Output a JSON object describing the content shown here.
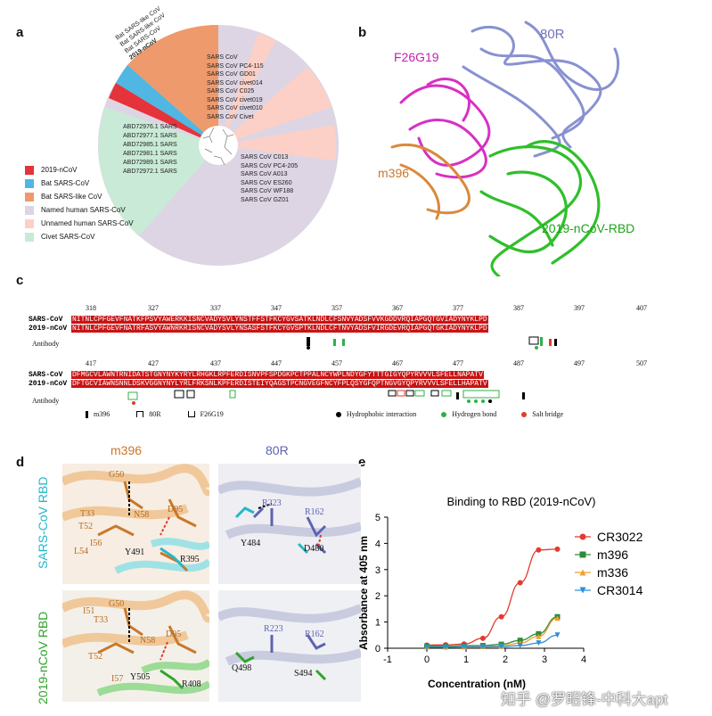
{
  "panels": {
    "a": "a",
    "b": "b",
    "c": "c",
    "d": "d",
    "e": "e"
  },
  "panel_a": {
    "legend": [
      {
        "label": "2019-nCoV",
        "color": "#e5333a"
      },
      {
        "label": "Bat SARS-CoV",
        "color": "#4fb7e2"
      },
      {
        "label": "Bat SARS-like CoV",
        "color": "#ee9a6c"
      },
      {
        "label": "Named human SARS-CoV",
        "color": "#ddd5e3"
      },
      {
        "label": "Unnamed human SARS-CoV",
        "color": "#fcd0c7"
      },
      {
        "label": "Civet SARS-CoV",
        "color": "#c9ead6"
      }
    ],
    "tree_labels": [
      "Bat SARS-like CoV",
      "Bat SARS-like CoV",
      "Bat SARS-CoV",
      "2019-nCoV",
      "SARS CoV",
      "SARS CoV PC4-115",
      "SARS CoV GD01",
      "SARS CoV civet014",
      "SARS CoV C025",
      "SARS CoV civet019",
      "SARS CoV civet010",
      "SARS CoV Civet",
      "SARS CoV C013",
      "SARS CoV PC4-205",
      "SARS CoV A013",
      "SARS CoV ES260",
      "SARS CoV WF188",
      "SARS CoV GZ01",
      "ABD72976.1 SARS",
      "ABD72977.1 SARS",
      "ABD72985.1 SARS",
      "ABD72981.1 SARS",
      "ABD72989.1 SARS",
      "ABD72972.1 SARS"
    ]
  },
  "panel_b": {
    "labels": {
      "r80": "80R",
      "f26": "F26G19",
      "m396": "m396",
      "rbd": "2019-nCoV-RBD"
    }
  },
  "panel_c": {
    "row1_positions": [
      "318",
      "327",
      "337",
      "347",
      "357",
      "367",
      "377",
      "387",
      "397",
      "407"
    ],
    "row1_sars": "NITNLCPFGEVFNATKFPSVYAWERKKISNCVADYSVLYNSTFFSTFKCYGVSATKLNDLCFSNVYADSFVVKGDDVRQIAPGQTGVIADYNYKLPD",
    "row1_ncov": "NITNLCPFGEVFNATRFASVYAWNRKRISNCVADYSVLYNSASFSTFKCYGVSPTKLNDLCFTNVYADSFVIRGDEVRQIAPGQTGKIADYNYKLPD",
    "row2_positions": [
      "417",
      "427",
      "437",
      "447",
      "457",
      "467",
      "477",
      "487",
      "497",
      "507"
    ],
    "row2_sars": "DFMGCVLAWNTRNIDATSTGNYNYKYRYLRHGKLRPFERDISNVPFSPDGKPCTPPALNCYWPLNDYGFYTTTGIGYQPYRVVVLSFELLNAPATV",
    "row2_ncov": "DFTGCVIAWNSNNLDSKVGGNYNYLYRLFRKSNLKPFERDISTEIYQAGSTPCNGVEGFNCYFPLQSYGFQPTNGVGYQPYRVVVLSFELLHAPATV",
    "seqnames": {
      "sars": "SARS-CoV",
      "ncov": "2019-nCoV",
      "antibody": "Antibody"
    },
    "legend": {
      "m396": "m396",
      "r80": "80R",
      "f26": "F26G19",
      "hydro": "Hydrophobic interaction",
      "hbond": "Hydrogen bond",
      "salt": "Salt bridge"
    }
  },
  "panel_d": {
    "col_titles": {
      "m396": "m396",
      "r80": "80R"
    },
    "row_titles": {
      "sars": "SARS-CoV RBD",
      "ncov": "2019-nCoV RBD"
    },
    "tl": [
      "G50",
      "T33",
      "T52",
      "N58",
      "D95",
      "I56",
      "L54",
      "Y491",
      "R395"
    ],
    "tr": [
      "R223",
      "R162",
      "Y484",
      "D480"
    ],
    "bl": [
      "G50",
      "I51",
      "T33",
      "N58",
      "D95",
      "T52",
      "I57",
      "Y505",
      "R408"
    ],
    "br": [
      "R223",
      "R162",
      "Q498",
      "S494"
    ]
  },
  "chart_data": {
    "type": "line",
    "title": "Binding to RBD (2019-nCoV)",
    "xlabel": "Concentration (nM)",
    "ylabel": "Absorbance at 405 nm",
    "xlim": [
      -1,
      4
    ],
    "ylim": [
      0,
      5
    ],
    "xticks": [
      "-1",
      "0",
      "1",
      "2",
      "3",
      "4"
    ],
    "yticks": [
      "0",
      "1",
      "2",
      "3",
      "4",
      "5"
    ],
    "legend_position": "right",
    "series": [
      {
        "name": "CR3022",
        "color": "#e33b2e",
        "marker": "circle",
        "x": [
          0,
          0.48,
          0.95,
          1.43,
          1.9,
          2.38,
          2.85,
          3.33
        ],
        "y": [
          0.12,
          0.13,
          0.16,
          0.38,
          1.2,
          2.5,
          3.75,
          3.78
        ]
      },
      {
        "name": "m396",
        "color": "#2e8b3a",
        "marker": "square",
        "x": [
          0,
          0.48,
          0.95,
          1.43,
          1.9,
          2.38,
          2.85,
          3.33
        ],
        "y": [
          0.08,
          0.08,
          0.1,
          0.1,
          0.15,
          0.3,
          0.55,
          1.2
        ]
      },
      {
        "name": "m336",
        "color": "#f0a030",
        "marker": "triangle-up",
        "x": [
          0,
          0.48,
          0.95,
          1.43,
          1.9,
          2.38,
          2.85,
          3.33
        ],
        "y": [
          0.05,
          0.05,
          0.06,
          0.07,
          0.09,
          0.2,
          0.45,
          1.15
        ]
      },
      {
        "name": "CR3014",
        "color": "#2f8fd6",
        "marker": "triangle-down",
        "x": [
          0,
          0.48,
          0.95,
          1.43,
          1.9,
          2.38,
          2.85,
          3.33
        ],
        "y": [
          0.04,
          0.04,
          0.05,
          0.05,
          0.06,
          0.1,
          0.2,
          0.5
        ]
      }
    ]
  },
  "watermark": "知乎 @罗昭锋-中科大apt"
}
